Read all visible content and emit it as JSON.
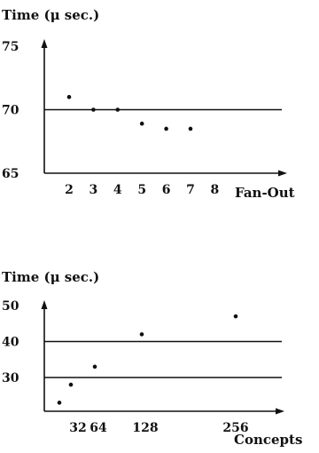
{
  "chart_data": [
    {
      "type": "scatter",
      "title": "",
      "ylabel": "Time (μ sec.)",
      "xlabel": "Fan-Out",
      "y_ticks": [
        "75",
        "70",
        "65"
      ],
      "x_ticks": [
        "2",
        "3",
        "4",
        "5",
        "6",
        "7",
        "8"
      ],
      "ylim": [
        65,
        75
      ],
      "xlim": [
        1,
        9.2
      ],
      "reference_lines": [
        70
      ],
      "points": [
        {
          "x": 2,
          "y": 71
        },
        {
          "x": 3,
          "y": 70
        },
        {
          "x": 4,
          "y": 70
        },
        {
          "x": 5,
          "y": 68.9
        },
        {
          "x": 6,
          "y": 68.5
        },
        {
          "x": 7,
          "y": 68.5
        }
      ]
    },
    {
      "type": "scatter",
      "title": "",
      "ylabel": "Time (μ sec.)",
      "xlabel": "Concepts",
      "y_ticks": [
        "50",
        "40",
        "30"
      ],
      "x_ticks": [
        "32",
        "64",
        "128",
        "256"
      ],
      "ylim": [
        20,
        50
      ],
      "xlim": [
        0,
        290
      ],
      "reference_lines": [
        40,
        30
      ],
      "points": [
        {
          "x": 16,
          "y": 23
        },
        {
          "x": 24,
          "y": 28
        },
        {
          "x": 64,
          "y": 33
        },
        {
          "x": 128,
          "y": 42
        },
        {
          "x": 256,
          "y": 47
        }
      ]
    }
  ]
}
